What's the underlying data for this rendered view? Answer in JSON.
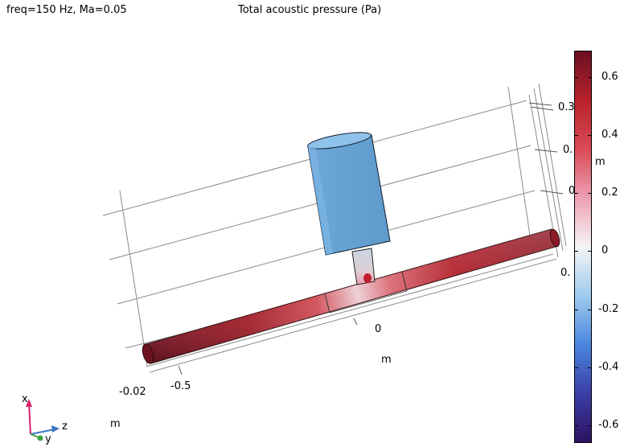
{
  "header": {
    "params": "freq=150 Hz, Ma=0.05",
    "title": "Total acoustic pressure (Pa)"
  },
  "axes": {
    "z_axis_ticks": [
      "-0.5",
      "0"
    ],
    "z_axis_unit": "m",
    "x_axis_ticks": [
      "0.3",
      "0.",
      "0"
    ],
    "x_axis_unit": "m",
    "right_partial_tick": "0.",
    "y_axis_tick": "-0.02",
    "y_axis_unit": "m"
  },
  "triad": {
    "x": "x",
    "y": "y",
    "z": "z",
    "x_color": "#d6246e",
    "y_color": "#3fa13f",
    "z_color": "#3b78c4"
  },
  "colorbar": {
    "ticks": [
      {
        "value": 0.6,
        "label": "0.6"
      },
      {
        "value": 0.4,
        "label": "0.4"
      },
      {
        "value": 0.2,
        "label": "0.2"
      },
      {
        "value": 0,
        "label": "0"
      },
      {
        "value": -0.2,
        "label": "-0.2"
      },
      {
        "value": -0.4,
        "label": "-0.4"
      },
      {
        "value": -0.6,
        "label": "-0.6"
      }
    ],
    "min": -0.66,
    "max": 0.69,
    "colors": [
      "#2c1260",
      "#3b3fa8",
      "#4a86de",
      "#9fcbee",
      "#f5f5f5",
      "#eda0b4",
      "#d94b55",
      "#b8222c",
      "#6a0f22"
    ]
  }
}
